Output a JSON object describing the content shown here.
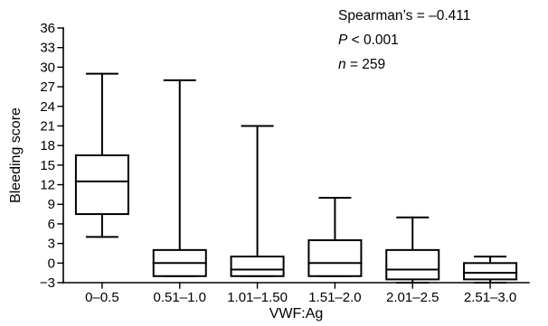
{
  "chart_data": {
    "type": "box",
    "xlabel": "VWF:Ag",
    "ylabel": "Bleeding score",
    "ylim": [
      -3,
      36
    ],
    "yticks": [
      -3,
      0,
      3,
      6,
      9,
      12,
      15,
      18,
      21,
      24,
      27,
      30,
      33,
      36
    ],
    "categories": [
      "0–0.5",
      "0.51–1.0",
      "1.01–1.50",
      "1.51–2.0",
      "2.01–2.5",
      "2.51–3.0"
    ],
    "boxes": [
      {
        "category": "0–0.5",
        "min": 4,
        "q1": 7.5,
        "median": 12.5,
        "q3": 16.5,
        "max": 29
      },
      {
        "category": "0.51–1.0",
        "min": -2,
        "q1": -2,
        "median": 0,
        "q3": 2,
        "max": 28
      },
      {
        "category": "1.01–1.50",
        "min": -2,
        "q1": -2,
        "median": -1,
        "q3": 1,
        "max": 21
      },
      {
        "category": "1.51–2.0",
        "min": -2,
        "q1": -2,
        "median": 0,
        "q3": 3.5,
        "max": 10
      },
      {
        "category": "2.01–2.5",
        "min": -3,
        "q1": -2.5,
        "median": -1,
        "q3": 2,
        "max": 7
      },
      {
        "category": "2.51–3.0",
        "min": -3,
        "q1": -2.5,
        "median": -1.5,
        "q3": 0,
        "max": 1
      }
    ],
    "annotations": {
      "spearman_label": "Spearman’s = –0.411",
      "p_symbol": "P",
      "p_rest": " < 0.001",
      "n_symbol": "n",
      "n_rest": " = 259"
    }
  }
}
